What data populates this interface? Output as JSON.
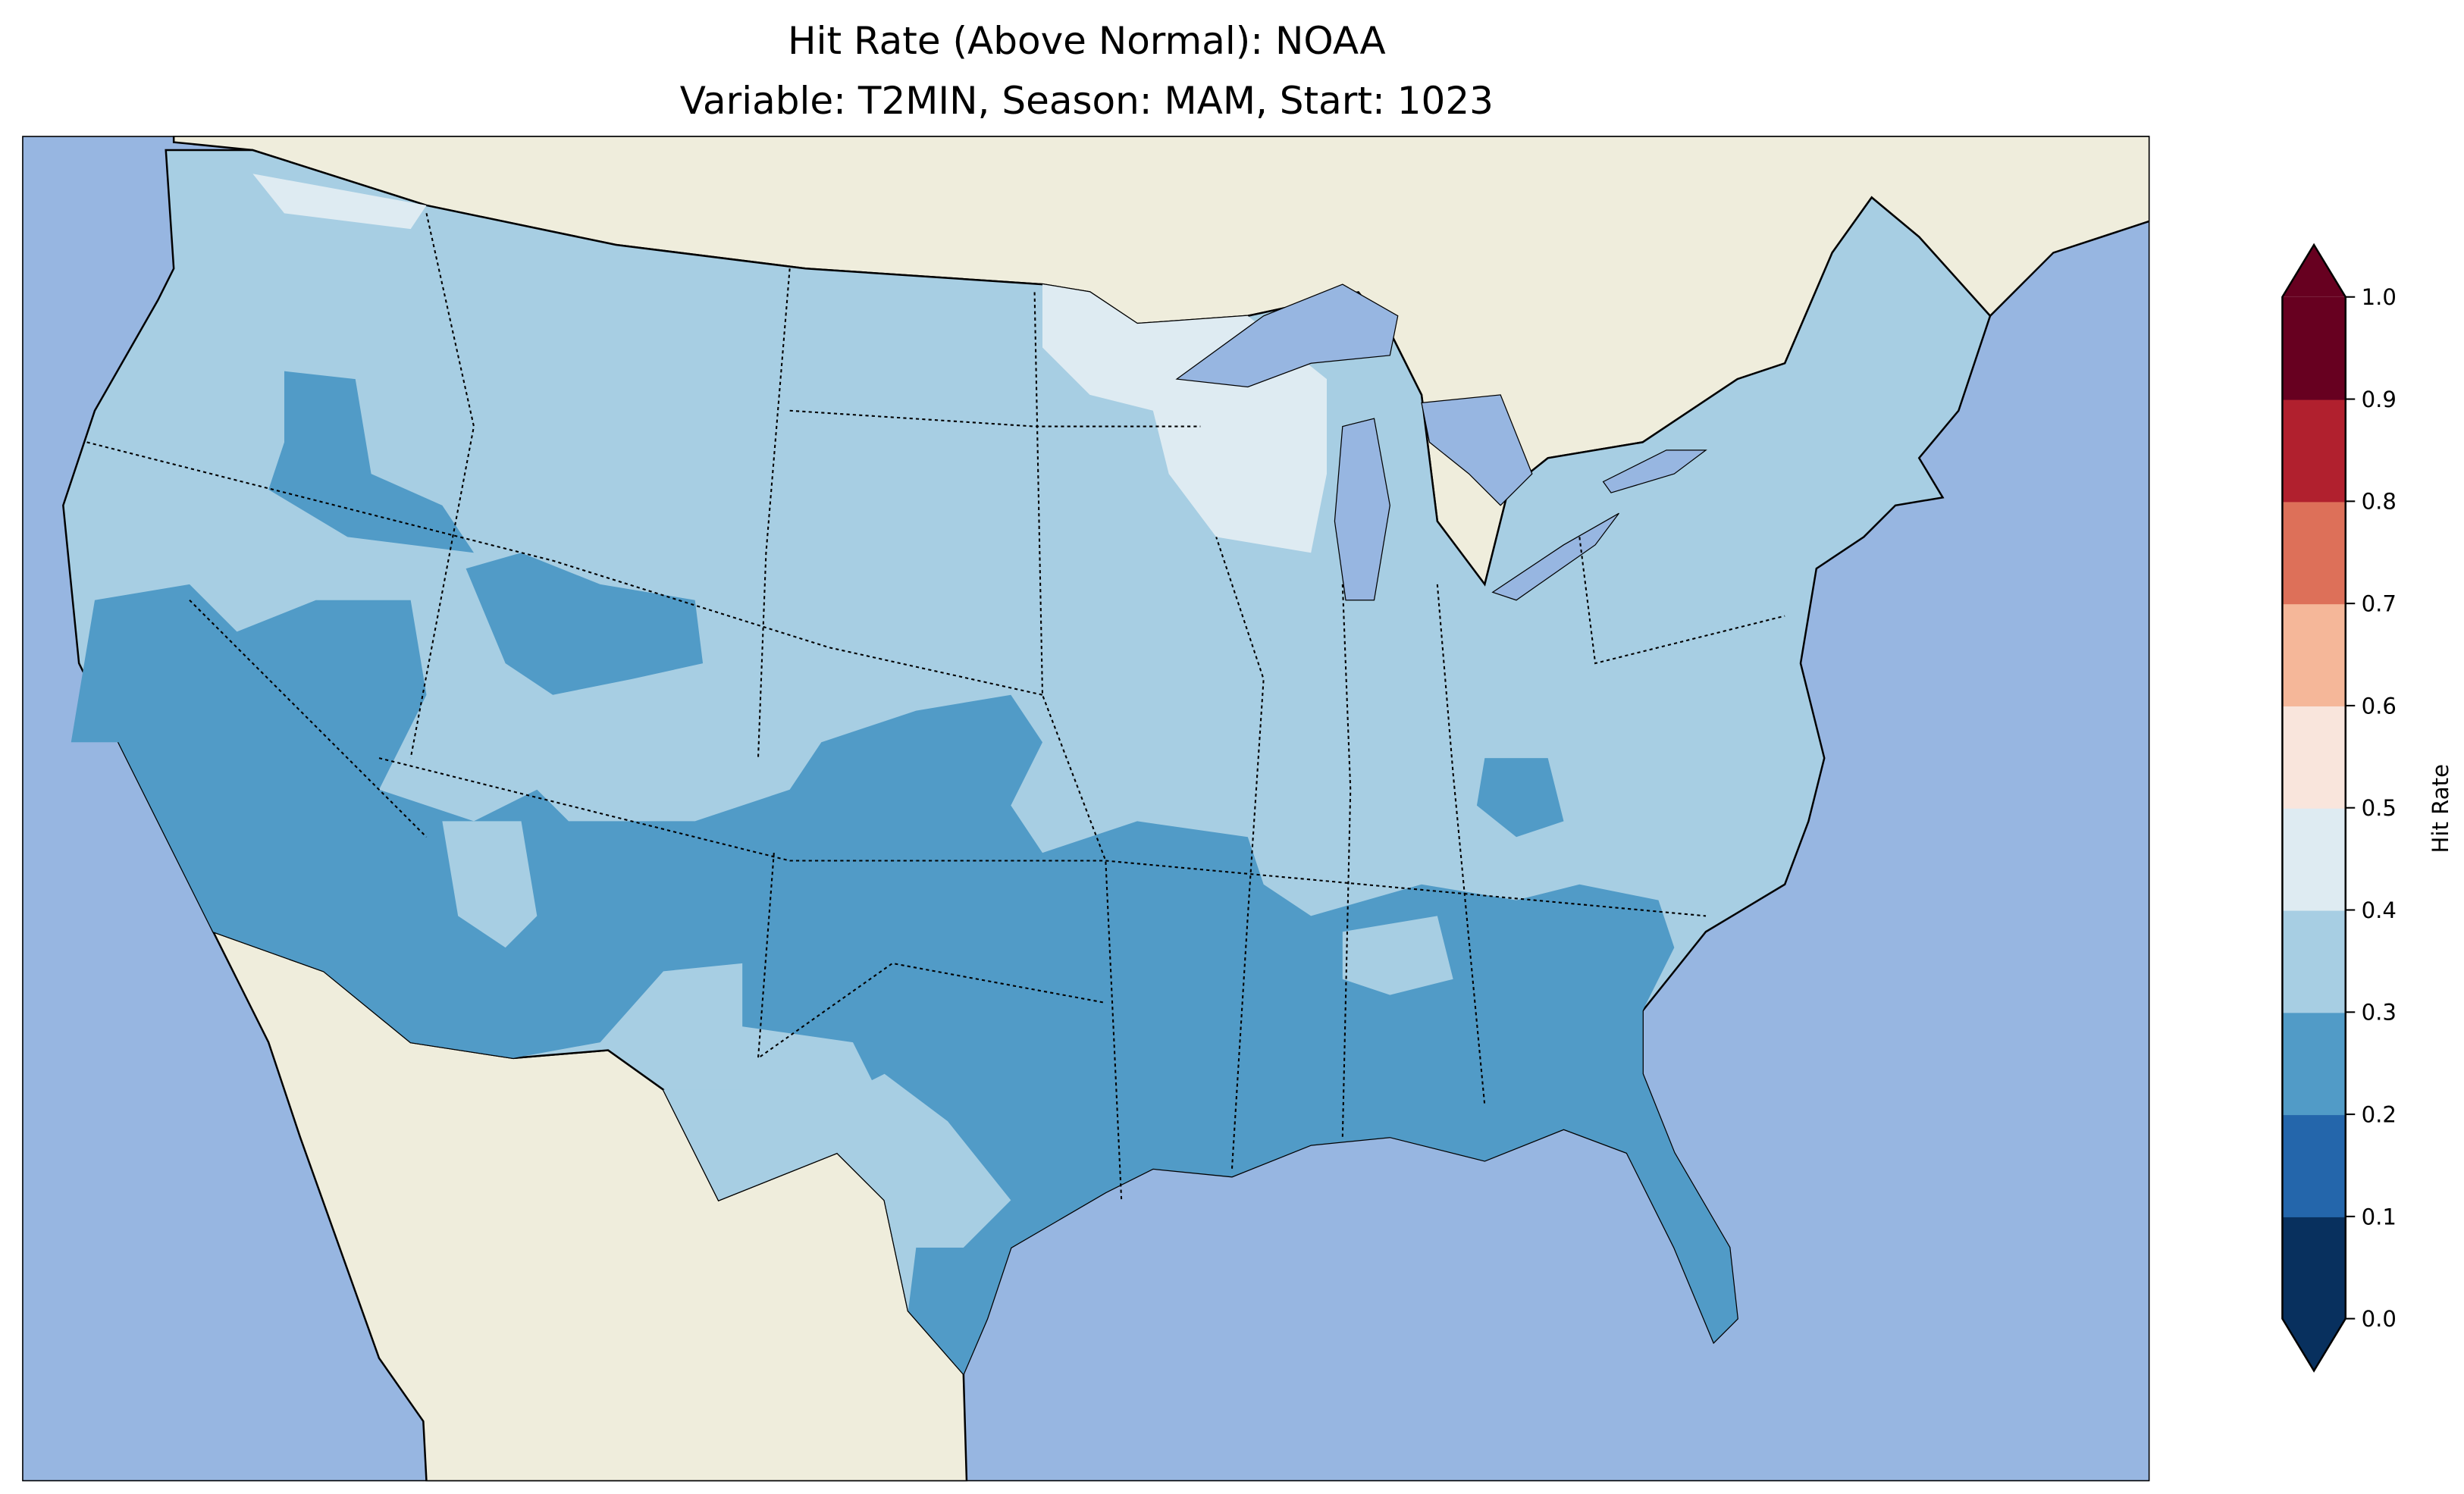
{
  "chart_data": {
    "type": "heatmap",
    "title": "Hit Rate (Above Normal): NOAA",
    "subtitle": "Variable: T2MIN, Season: MAM, Start: 1023",
    "region": "Contiguous United States",
    "colorbar": {
      "label": "Hit Rate",
      "range": [
        0.0,
        1.0
      ],
      "extend": "both",
      "ticks": [
        "0.0",
        "0.1",
        "0.2",
        "0.3",
        "0.4",
        "0.5",
        "0.6",
        "0.7",
        "0.8",
        "0.9",
        "1.0"
      ],
      "bins": [
        {
          "range": [
            0.0,
            0.1
          ],
          "color": "#08305e"
        },
        {
          "range": [
            0.1,
            0.2
          ],
          "color": "#2466ab"
        },
        {
          "range": [
            0.2,
            0.3
          ],
          "color": "#519bc7"
        },
        {
          "range": [
            0.3,
            0.4
          ],
          "color": "#a7cee3"
        },
        {
          "range": [
            0.4,
            0.5
          ],
          "color": "#deebf2"
        },
        {
          "range": [
            0.5,
            0.6
          ],
          "color": "#f9e5dc"
        },
        {
          "range": [
            0.6,
            0.7
          ],
          "color": "#f5b799"
        },
        {
          "range": [
            0.7,
            0.8
          ],
          "color": "#dd7059"
        },
        {
          "range": [
            0.8,
            0.9
          ],
          "color": "#b1202e"
        },
        {
          "range": [
            0.9,
            1.0
          ],
          "color": "#670020"
        }
      ]
    },
    "dominant_bins": {
      "most_of_country": "0.3-0.4",
      "south_and_southwest": "0.2-0.3",
      "upper_midwest_wisconsin_minnesota": "0.4-0.5"
    },
    "colors": {
      "ocean": "#97b6e1",
      "land": "#efeddc"
    }
  }
}
